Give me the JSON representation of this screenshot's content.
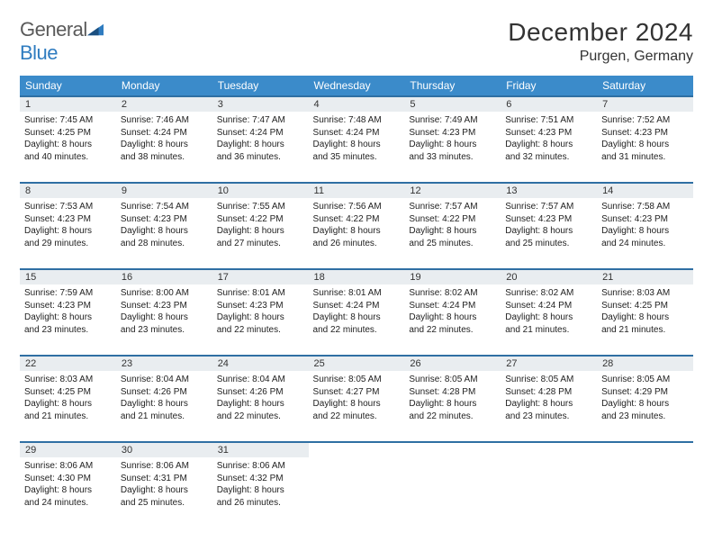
{
  "brand": {
    "general": "General",
    "blue": "Blue"
  },
  "title": "December 2024",
  "location": "Purgen, Germany",
  "colors": {
    "header_bg": "#3b8bca",
    "header_border": "#2f6fa3",
    "daynum_bg": "#e9edf0",
    "brand_blue": "#2f7cc0",
    "text": "#333333"
  },
  "weekdays": [
    "Sunday",
    "Monday",
    "Tuesday",
    "Wednesday",
    "Thursday",
    "Friday",
    "Saturday"
  ],
  "weeks": [
    [
      {
        "d": "1",
        "sr": "7:45 AM",
        "ss": "4:25 PM",
        "dl1": "Daylight: 8 hours",
        "dl2": "and 40 minutes."
      },
      {
        "d": "2",
        "sr": "7:46 AM",
        "ss": "4:24 PM",
        "dl1": "Daylight: 8 hours",
        "dl2": "and 38 minutes."
      },
      {
        "d": "3",
        "sr": "7:47 AM",
        "ss": "4:24 PM",
        "dl1": "Daylight: 8 hours",
        "dl2": "and 36 minutes."
      },
      {
        "d": "4",
        "sr": "7:48 AM",
        "ss": "4:24 PM",
        "dl1": "Daylight: 8 hours",
        "dl2": "and 35 minutes."
      },
      {
        "d": "5",
        "sr": "7:49 AM",
        "ss": "4:23 PM",
        "dl1": "Daylight: 8 hours",
        "dl2": "and 33 minutes."
      },
      {
        "d": "6",
        "sr": "7:51 AM",
        "ss": "4:23 PM",
        "dl1": "Daylight: 8 hours",
        "dl2": "and 32 minutes."
      },
      {
        "d": "7",
        "sr": "7:52 AM",
        "ss": "4:23 PM",
        "dl1": "Daylight: 8 hours",
        "dl2": "and 31 minutes."
      }
    ],
    [
      {
        "d": "8",
        "sr": "7:53 AM",
        "ss": "4:23 PM",
        "dl1": "Daylight: 8 hours",
        "dl2": "and 29 minutes."
      },
      {
        "d": "9",
        "sr": "7:54 AM",
        "ss": "4:23 PM",
        "dl1": "Daylight: 8 hours",
        "dl2": "and 28 minutes."
      },
      {
        "d": "10",
        "sr": "7:55 AM",
        "ss": "4:22 PM",
        "dl1": "Daylight: 8 hours",
        "dl2": "and 27 minutes."
      },
      {
        "d": "11",
        "sr": "7:56 AM",
        "ss": "4:22 PM",
        "dl1": "Daylight: 8 hours",
        "dl2": "and 26 minutes."
      },
      {
        "d": "12",
        "sr": "7:57 AM",
        "ss": "4:22 PM",
        "dl1": "Daylight: 8 hours",
        "dl2": "and 25 minutes."
      },
      {
        "d": "13",
        "sr": "7:57 AM",
        "ss": "4:23 PM",
        "dl1": "Daylight: 8 hours",
        "dl2": "and 25 minutes."
      },
      {
        "d": "14",
        "sr": "7:58 AM",
        "ss": "4:23 PM",
        "dl1": "Daylight: 8 hours",
        "dl2": "and 24 minutes."
      }
    ],
    [
      {
        "d": "15",
        "sr": "7:59 AM",
        "ss": "4:23 PM",
        "dl1": "Daylight: 8 hours",
        "dl2": "and 23 minutes."
      },
      {
        "d": "16",
        "sr": "8:00 AM",
        "ss": "4:23 PM",
        "dl1": "Daylight: 8 hours",
        "dl2": "and 23 minutes."
      },
      {
        "d": "17",
        "sr": "8:01 AM",
        "ss": "4:23 PM",
        "dl1": "Daylight: 8 hours",
        "dl2": "and 22 minutes."
      },
      {
        "d": "18",
        "sr": "8:01 AM",
        "ss": "4:24 PM",
        "dl1": "Daylight: 8 hours",
        "dl2": "and 22 minutes."
      },
      {
        "d": "19",
        "sr": "8:02 AM",
        "ss": "4:24 PM",
        "dl1": "Daylight: 8 hours",
        "dl2": "and 22 minutes."
      },
      {
        "d": "20",
        "sr": "8:02 AM",
        "ss": "4:24 PM",
        "dl1": "Daylight: 8 hours",
        "dl2": "and 21 minutes."
      },
      {
        "d": "21",
        "sr": "8:03 AM",
        "ss": "4:25 PM",
        "dl1": "Daylight: 8 hours",
        "dl2": "and 21 minutes."
      }
    ],
    [
      {
        "d": "22",
        "sr": "8:03 AM",
        "ss": "4:25 PM",
        "dl1": "Daylight: 8 hours",
        "dl2": "and 21 minutes."
      },
      {
        "d": "23",
        "sr": "8:04 AM",
        "ss": "4:26 PM",
        "dl1": "Daylight: 8 hours",
        "dl2": "and 21 minutes."
      },
      {
        "d": "24",
        "sr": "8:04 AM",
        "ss": "4:26 PM",
        "dl1": "Daylight: 8 hours",
        "dl2": "and 22 minutes."
      },
      {
        "d": "25",
        "sr": "8:05 AM",
        "ss": "4:27 PM",
        "dl1": "Daylight: 8 hours",
        "dl2": "and 22 minutes."
      },
      {
        "d": "26",
        "sr": "8:05 AM",
        "ss": "4:28 PM",
        "dl1": "Daylight: 8 hours",
        "dl2": "and 22 minutes."
      },
      {
        "d": "27",
        "sr": "8:05 AM",
        "ss": "4:28 PM",
        "dl1": "Daylight: 8 hours",
        "dl2": "and 23 minutes."
      },
      {
        "d": "28",
        "sr": "8:05 AM",
        "ss": "4:29 PM",
        "dl1": "Daylight: 8 hours",
        "dl2": "and 23 minutes."
      }
    ],
    [
      {
        "d": "29",
        "sr": "8:06 AM",
        "ss": "4:30 PM",
        "dl1": "Daylight: 8 hours",
        "dl2": "and 24 minutes."
      },
      {
        "d": "30",
        "sr": "8:06 AM",
        "ss": "4:31 PM",
        "dl1": "Daylight: 8 hours",
        "dl2": "and 25 minutes."
      },
      {
        "d": "31",
        "sr": "8:06 AM",
        "ss": "4:32 PM",
        "dl1": "Daylight: 8 hours",
        "dl2": "and 26 minutes."
      },
      null,
      null,
      null,
      null
    ]
  ],
  "labels": {
    "sunrise": "Sunrise: ",
    "sunset": "Sunset: "
  }
}
